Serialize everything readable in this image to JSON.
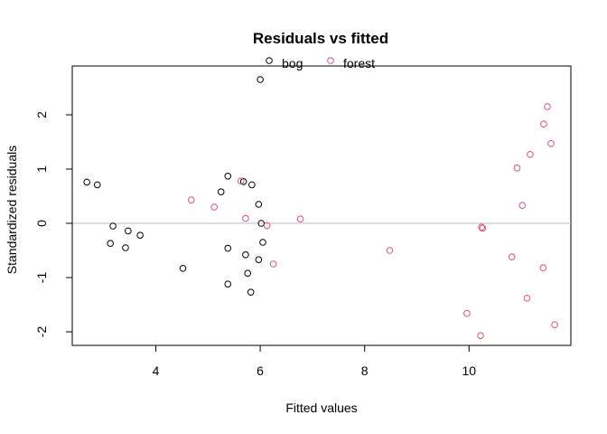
{
  "chart_data": {
    "type": "scatter",
    "title": "Residuals vs fitted",
    "xlabel": "Fitted values",
    "ylabel": "Standardized residuals",
    "xlim": [
      2.4,
      11.95
    ],
    "ylim": [
      -2.25,
      2.9
    ],
    "xticks": [
      4,
      6,
      8,
      10
    ],
    "yticks": [
      -2,
      -1,
      0,
      1,
      2
    ],
    "reference_line": {
      "y": 0,
      "color": "#BEBEBE"
    },
    "grid": false,
    "legend_position": "top-center",
    "series": [
      {
        "name": "bog",
        "color": "#000000",
        "marker": "open-circle",
        "points": [
          [
            2.68,
            0.76
          ],
          [
            2.88,
            0.71
          ],
          [
            3.13,
            -0.37
          ],
          [
            3.18,
            -0.05
          ],
          [
            3.42,
            -0.45
          ],
          [
            3.47,
            -0.14
          ],
          [
            3.7,
            -0.22
          ],
          [
            4.52,
            -0.83
          ],
          [
            5.25,
            0.58
          ],
          [
            5.38,
            0.87
          ],
          [
            5.38,
            -0.46
          ],
          [
            5.38,
            -1.12
          ],
          [
            5.68,
            0.77
          ],
          [
            5.72,
            -0.58
          ],
          [
            5.76,
            -0.92
          ],
          [
            5.82,
            -1.27
          ],
          [
            5.84,
            0.71
          ],
          [
            5.97,
            0.35
          ],
          [
            5.97,
            -0.67
          ],
          [
            6.0,
            2.65
          ],
          [
            6.02,
            0.0
          ],
          [
            6.05,
            -0.35
          ]
        ]
      },
      {
        "name": "forest",
        "color": "#DF536B",
        "marker": "open-circle",
        "points": [
          [
            4.68,
            0.43
          ],
          [
            5.12,
            0.3
          ],
          [
            5.63,
            0.78
          ],
          [
            5.72,
            0.09
          ],
          [
            6.13,
            -0.04
          ],
          [
            6.25,
            -0.75
          ],
          [
            6.77,
            0.08
          ],
          [
            8.48,
            -0.5
          ],
          [
            9.96,
            -1.66
          ],
          [
            10.22,
            -2.07
          ],
          [
            10.24,
            -0.07
          ],
          [
            10.26,
            -0.09
          ],
          [
            10.82,
            -0.62
          ],
          [
            10.92,
            1.02
          ],
          [
            11.02,
            0.33
          ],
          [
            11.11,
            -1.38
          ],
          [
            11.17,
            1.27
          ],
          [
            11.42,
            -0.82
          ],
          [
            11.43,
            1.83
          ],
          [
            11.5,
            2.15
          ],
          [
            11.57,
            1.47
          ],
          [
            11.64,
            -1.87
          ]
        ]
      }
    ]
  }
}
